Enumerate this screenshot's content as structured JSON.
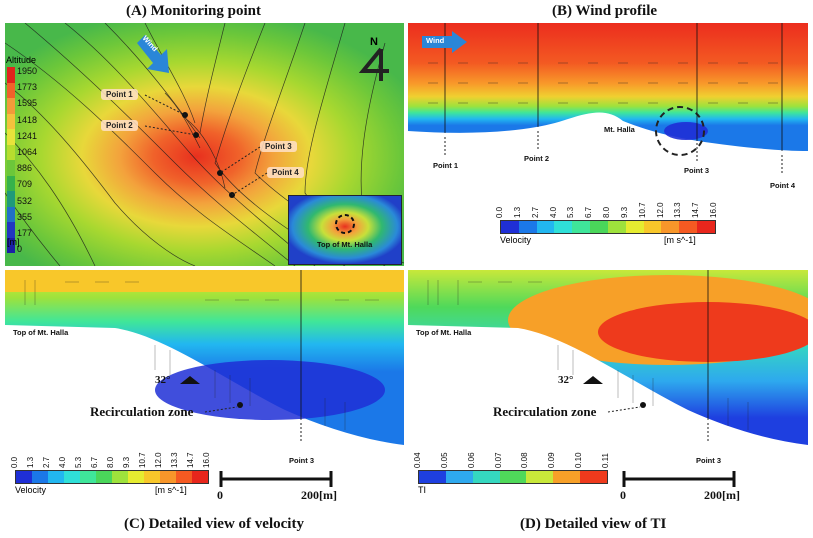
{
  "titles": {
    "a": "(A) Monitoring point",
    "b": "(B) Wind profile",
    "c": "(C) Detailed view of velocity",
    "d": "(D) Detailed view of TI"
  },
  "panel_a": {
    "wind": "Wind",
    "north": "N",
    "legend_title": "Altitude",
    "legend_values": [
      "1950",
      "1773",
      "1595",
      "1418",
      "1241",
      "1064",
      "886",
      "709",
      "532",
      "355",
      "177",
      "0"
    ],
    "legend_unit": "[m]",
    "legend_colors": [
      "#e0231c",
      "#f0622a",
      "#f39a3a",
      "#f3c23d",
      "#e8e33b",
      "#b7dd2e",
      "#6cc73a",
      "#36b24b",
      "#1f9a7a",
      "#2070c8",
      "#2137c0",
      "#1b1fa6"
    ],
    "points": [
      "Point 1",
      "Point 2",
      "Point 3",
      "Point 4"
    ],
    "inset_label": "Top of Mt. Halla"
  },
  "panel_b": {
    "wind": "Wind",
    "summit": "Mt. Halla",
    "points": [
      "Point 1",
      "Point 2",
      "Point 3",
      "Point 4"
    ],
    "colorbar": {
      "ticks": [
        "0.0",
        "1.3",
        "2.7",
        "4.0",
        "5.3",
        "6.7",
        "8.0",
        "9.3",
        "10.7",
        "12.0",
        "13.3",
        "14.7",
        "16.0"
      ],
      "label": "Velocity",
      "unit": "[m s^-1]"
    }
  },
  "panel_c": {
    "summit": "Top of Mt. Halla",
    "angle": "32°",
    "zone": "Recirculation zone",
    "point": "Point 3",
    "colorbar": {
      "ticks": [
        "0.0",
        "1.3",
        "2.7",
        "4.0",
        "5.3",
        "6.7",
        "8.0",
        "9.3",
        "10.7",
        "12.0",
        "13.3",
        "14.7",
        "16.0"
      ],
      "label": "Velocity",
      "unit": "[m s^-1]"
    },
    "scale": {
      "start": "0",
      "end": "200[m]"
    }
  },
  "panel_d": {
    "summit": "Top of Mt. Halla",
    "angle": "32°",
    "zone": "Recirculation zone",
    "point": "Point 3",
    "colorbar": {
      "ticks": [
        "0.04",
        "0.05",
        "0.06",
        "0.07",
        "0.08",
        "0.09",
        "0.10",
        "0.11"
      ],
      "label": "TI"
    },
    "scale": {
      "start": "0",
      "end": "200[m]"
    }
  },
  "colors": {
    "velocity_scale": [
      "#1f2fd6",
      "#1b78e8",
      "#22b7f0",
      "#2fe0d8",
      "#3fe69a",
      "#4ad65a",
      "#9ee23c",
      "#e6ec30",
      "#f8c72a",
      "#f8962a",
      "#f55a22",
      "#e8261c"
    ],
    "ti_scale": [
      "#1e3fe0",
      "#2ea9ee",
      "#35d8c0",
      "#4fd95a",
      "#c8e83a",
      "#f7a028",
      "#ee3a1c"
    ]
  }
}
